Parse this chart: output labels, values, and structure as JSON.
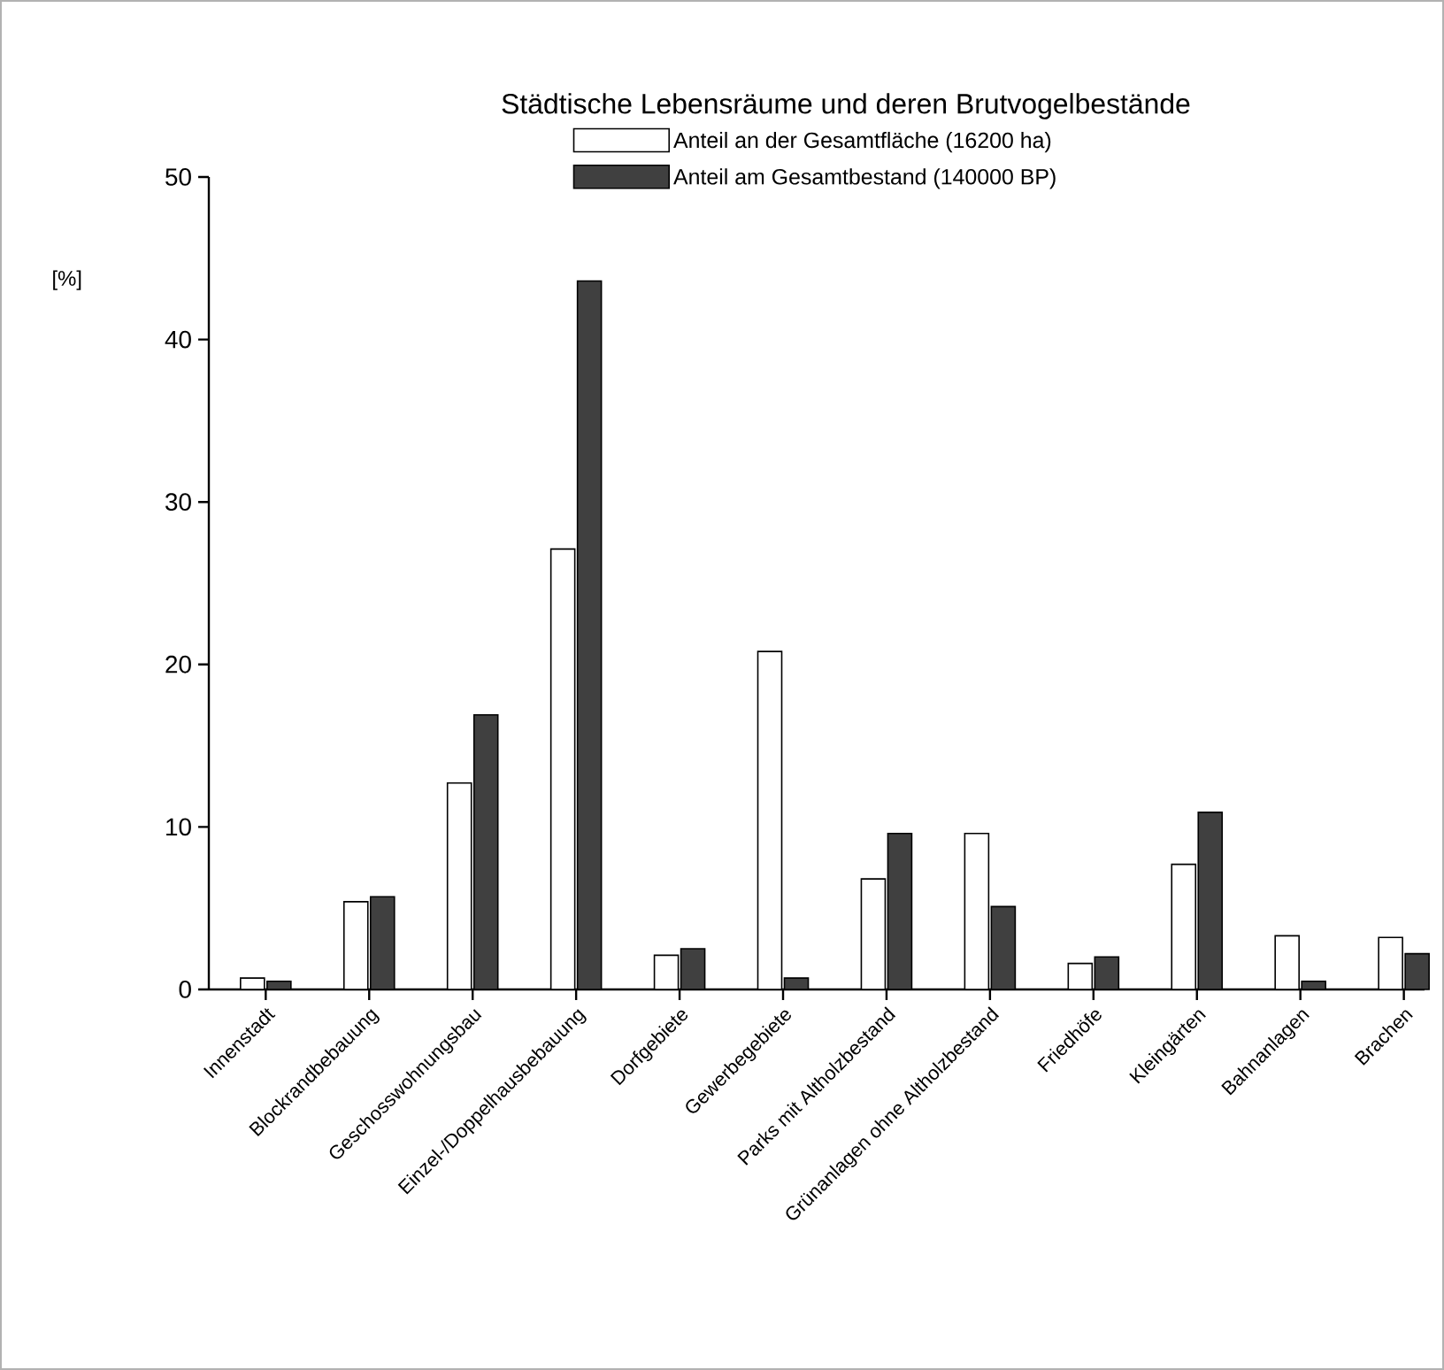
{
  "chart_data": {
    "type": "bar",
    "title": "Städtische Lebensräume und deren Brutvogelbestände",
    "ylabel": "[%]",
    "categories": [
      "Innenstadt",
      "Blockrandbebauung",
      "Geschosswohnungsbau",
      "Einzel-/Doppelhausbebauung",
      "Dorfgebiete",
      "Gewerbegebiete",
      "Parks mit Altholzbestand",
      "Grünanlagen ohne Altholzbestand",
      "Friedhöfe",
      "Kleingärten",
      "Bahnanlagen",
      "Brachen"
    ],
    "series": [
      {
        "name": "Anteil an der Gesamtfläche (16200 ha)",
        "color": "#ffffff",
        "values": [
          0.7,
          5.4,
          12.7,
          27.1,
          2.1,
          20.8,
          6.8,
          9.6,
          1.6,
          7.7,
          3.3,
          3.2
        ]
      },
      {
        "name": "Anteil am Gesamtbestand (140000 BP)",
        "color": "#404040",
        "values": [
          0.5,
          5.7,
          16.9,
          43.6,
          2.5,
          0.7,
          9.6,
          5.1,
          2.0,
          10.9,
          0.5,
          2.2
        ]
      }
    ],
    "ylim": [
      0,
      50
    ],
    "yticks": [
      0,
      10,
      20,
      30,
      40,
      50
    ],
    "legend": "top"
  }
}
